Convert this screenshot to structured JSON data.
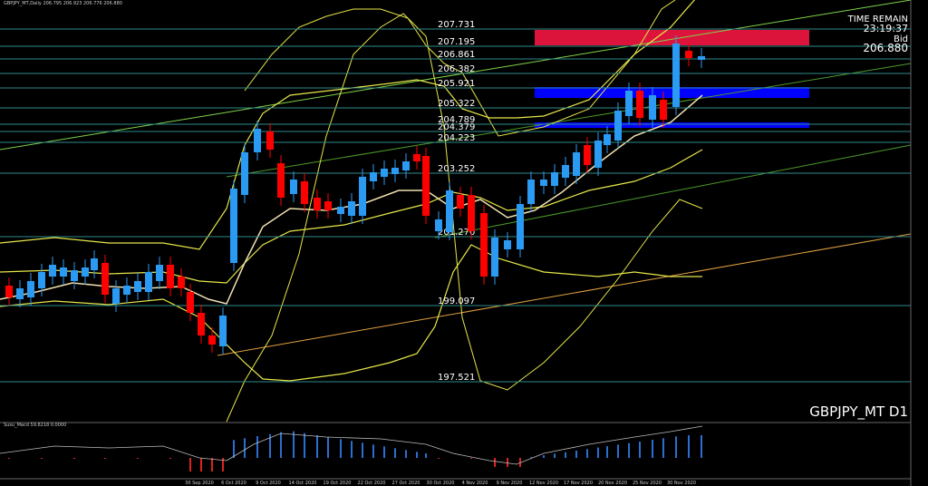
{
  "header": {
    "title": "GBPJPY_MT,Daily 206.795 206.923 206.776 206.880"
  },
  "price_levels": [
    "207.731",
    "207.195",
    "206.861",
    "206.382",
    "205.921",
    "205.322",
    "204.789",
    "204.379",
    "204.223",
    "203.252",
    "201.270",
    "199.097",
    "197.521"
  ],
  "timer": {
    "label": "TIME REMAIN",
    "value": "23:19:37"
  },
  "bid": {
    "label": "Bid",
    "value": "206.880"
  },
  "symbol": "GBPJPY_MT D1",
  "indicator": {
    "label": "Susu_Macd 59.8218 0.0000"
  },
  "dates": [
    "30 Sep 2020",
    "6 Oct 2020",
    "9 Oct 2020",
    "14 Oct 2020",
    "19 Oct 2020",
    "22 Oct 2020",
    "27 Oct 2020",
    "30 Oct 2020",
    "4 Nov 2020",
    "9 Nov 2020",
    "12 Nov 2020",
    "17 Nov 2020",
    "20 Nov 2020",
    "25 Nov 2020",
    "30 Nov 2020"
  ]
}
